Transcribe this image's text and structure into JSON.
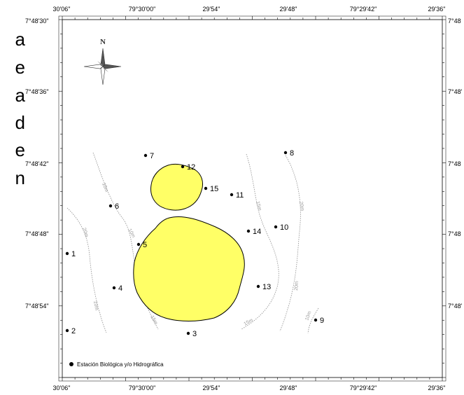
{
  "side_text": [
    "a",
    "e",
    "a",
    "d",
    "e",
    "n"
  ],
  "top_ticks": [
    "30'06\"",
    "79°30'00\"",
    "29'54\"",
    "29'48\"",
    "79°29'42\"",
    "29'36\""
  ],
  "bottom_ticks": [
    "30'06\"",
    "79°30'00\"",
    "29'54\"",
    "29'48\"",
    "79°29'42\"",
    "29'36\""
  ],
  "left_ticks": [
    "7°48'30\"",
    "7°48'36\"",
    "7°48'42\"",
    "7°48'48\"",
    "7°48'54\""
  ],
  "right_ticks": [
    "7°48",
    "7°48'",
    "7°48",
    "7°48",
    "7°48'"
  ],
  "north_label": "N",
  "stations": [
    "1",
    "2",
    "3",
    "4",
    "5",
    "6",
    "7",
    "8",
    "9",
    "10",
    "11",
    "12",
    "13",
    "14",
    "15"
  ],
  "contour_labels": [
    "10m",
    "20m",
    "10m",
    "10m",
    "15m",
    "20m",
    "15m",
    "20m",
    "10m",
    "15m"
  ],
  "legend": {
    "label": "Estación Biológica y/o Hidrográfica"
  },
  "colors": {
    "island": "#ffff66",
    "contour": "#8c8c8c",
    "frame": "#000000"
  }
}
